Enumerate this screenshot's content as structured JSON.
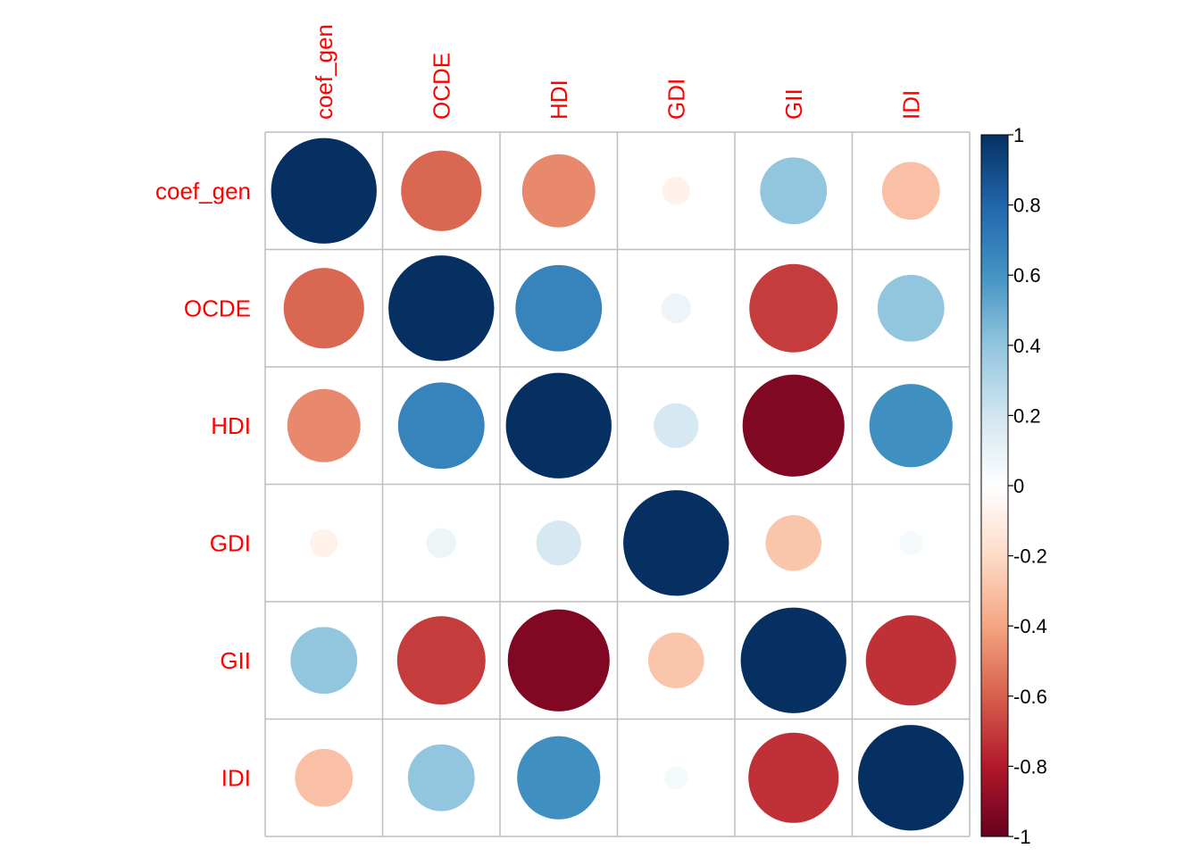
{
  "chart_data": {
    "type": "heatmap",
    "variables": [
      "coef_gen",
      "OCDE",
      "HDI",
      "GDI",
      "GII",
      "IDI"
    ],
    "matrix": [
      [
        1.0,
        -0.58,
        -0.48,
        -0.07,
        0.4,
        -0.3
      ],
      [
        -0.58,
        1.0,
        0.67,
        0.08,
        -0.7,
        0.4
      ],
      [
        -0.48,
        0.67,
        1.0,
        0.18,
        -0.93,
        0.62
      ],
      [
        -0.07,
        0.08,
        0.18,
        1.0,
        -0.28,
        0.05
      ],
      [
        0.4,
        -0.7,
        -0.93,
        -0.28,
        1.0,
        -0.73
      ],
      [
        -0.3,
        0.4,
        0.62,
        0.05,
        -0.73,
        1.0
      ]
    ],
    "colorbar": {
      "ticks": [
        "1",
        "0.8",
        "0.6",
        "0.4",
        "0.2",
        "0",
        "-0.2",
        "-0.4",
        "-0.6",
        "-0.8",
        "-1"
      ],
      "range": [
        -1,
        1
      ],
      "colors": {
        "neg1": "#67001f",
        "neg08": "#b2182b",
        "neg06": "#d6604d",
        "neg04": "#f4a582",
        "neg02": "#fddbc7",
        "zero": "#ffffff",
        "pos02": "#d1e5f0",
        "pos04": "#92c5de",
        "pos06": "#4393c3",
        "pos08": "#2166ac",
        "pos1": "#053061"
      }
    },
    "label_color": "#ff0000",
    "grid_color": "#bebebe",
    "glyph": "circle"
  }
}
